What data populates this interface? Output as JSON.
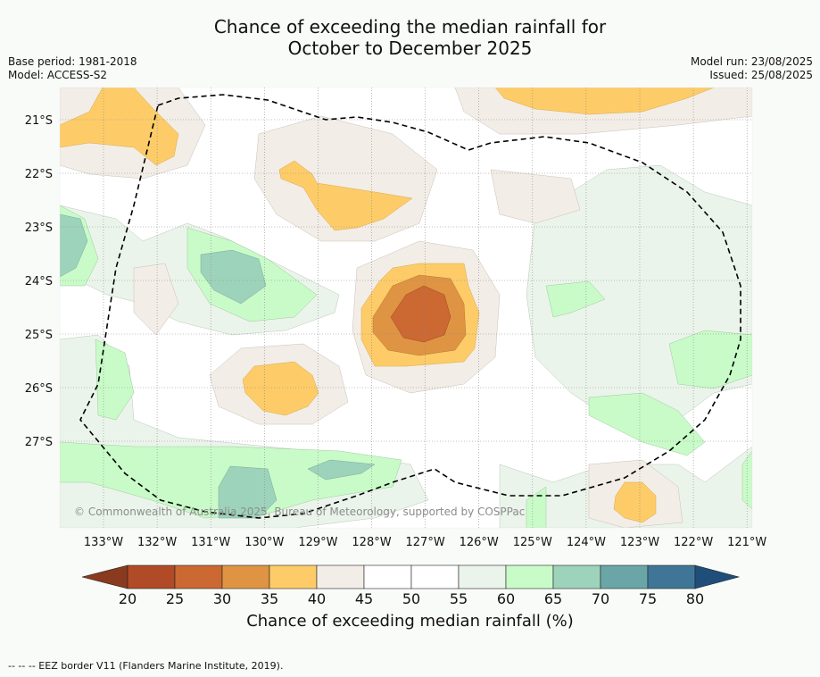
{
  "title": {
    "line1": "Chance of exceeding the median rainfall for",
    "line2": "October to December 2025"
  },
  "meta": {
    "base_period": "Base period: 1981-2018",
    "model": "Model: ACCESS-S2",
    "model_run": "Model run: 23/08/2025",
    "issued": "Issued: 25/08/2025"
  },
  "copyright": "© Commonwealth of Australia 2025, Bureau of Meteorology, supported by COSPPac",
  "footer": "--  --  -- EEZ border V11 (Flanders Marine Institute, 2019).",
  "axes": {
    "lon_labels": [
      "133°W",
      "132°W",
      "131°W",
      "130°W",
      "129°W",
      "128°W",
      "127°W",
      "126°W",
      "125°W",
      "124°W",
      "123°W",
      "122°W",
      "121°W"
    ],
    "lat_labels": [
      "21°S",
      "22°S",
      "23°S",
      "24°S",
      "25°S",
      "26°S",
      "27°S"
    ]
  },
  "colorbar": {
    "label": "Chance of exceeding median rainfall (%)",
    "ticks": [
      "20",
      "25",
      "30",
      "35",
      "40",
      "45",
      "50",
      "55",
      "60",
      "65",
      "70",
      "75",
      "80"
    ],
    "low_color": "#8a3a1e",
    "high_color": "#1f4e7a",
    "bins": [
      "#b14a26",
      "#cc6832",
      "#df9444",
      "#fdcc68",
      "#f2ede6",
      "#ffffff",
      "#ffffff",
      "#ebf4eb",
      "#c9fbc9",
      "#9ed3bb",
      "#6aa6a7",
      "#3f7698"
    ]
  },
  "palette": {
    "p30_35": "#df9444",
    "p25_30": "#cc6832",
    "p35_40": "#fdcc68",
    "p40_45": "#f2ede6",
    "p55_60": "#ebf4eb",
    "p60_65": "#c9fbc9",
    "p65_70": "#9ed3bb",
    "p70_75": "#6aa6a7"
  }
}
